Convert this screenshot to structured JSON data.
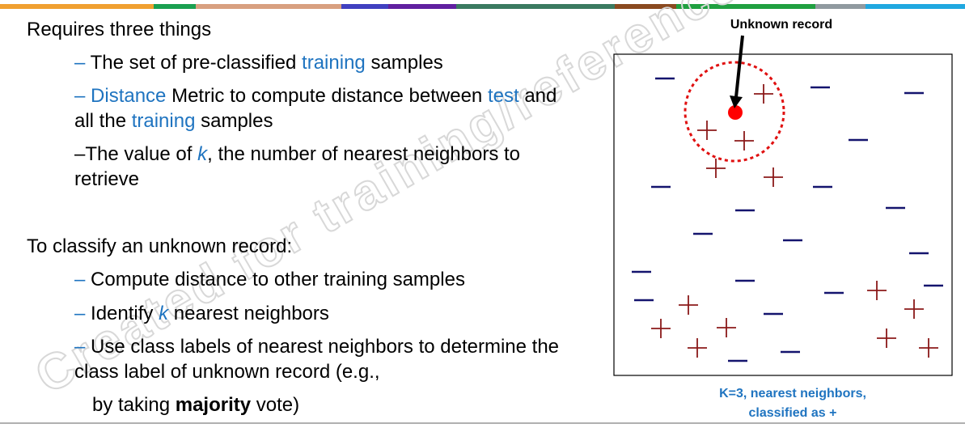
{
  "watermark": "Created for training/references",
  "left": {
    "heading1": "Requires three things",
    "requirements": [
      [
        "–",
        "The set of pre-classified",
        "training",
        "samples"
      ],
      [
        "–",
        "Distance",
        "Metric to compute distance between",
        "test",
        "and all the",
        "training",
        "samples"
      ],
      [
        "–The value of",
        "k",
        ", the number of nearest neighbors to retrieve"
      ]
    ],
    "heading2": "To classify an unknown record:",
    "steps": [
      [
        "–",
        "Compute distance to other training samples"
      ],
      [
        "–",
        "Identify",
        "k",
        "nearest neighbors"
      ],
      [
        "–",
        "Use class labels of nearest neighbors to determine the class label of unknown record (e.g.,"
      ],
      [
        "by taking",
        "majority",
        "vote)"
      ]
    ]
  },
  "diagram": {
    "unknown_label": "Unknown record",
    "caption_line1": "K=3, nearest neighbors,",
    "caption_line2": "classified as +"
  }
}
